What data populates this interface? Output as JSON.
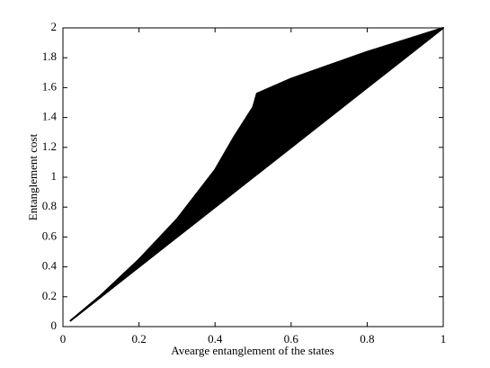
{
  "chart_data": {
    "type": "fill_between",
    "xlabel": "Avearge entanglement of the states",
    "ylabel": "Entanglement cost",
    "x": [
      0.02,
      0.1,
      0.2,
      0.3,
      0.4,
      0.45,
      0.5,
      0.51,
      0.6,
      0.7,
      0.8,
      0.9,
      1
    ],
    "y_lower": [
      0.04,
      0.2,
      0.4,
      0.6,
      0.8,
      0.9,
      1.0,
      1.02,
      1.2,
      1.4,
      1.6,
      1.8,
      2
    ],
    "y_upper": [
      0.04,
      0.21,
      0.45,
      0.72,
      1.05,
      1.27,
      1.47,
      1.56,
      1.66,
      1.75,
      1.84,
      1.92,
      2
    ],
    "color": "#000000",
    "xlim": [
      0,
      1
    ],
    "xticks": [
      0,
      0.2,
      0.4,
      0.6,
      0.8,
      1
    ],
    "ylim": [
      0,
      2
    ],
    "yticks": [
      0,
      0.2,
      0.4,
      0.6,
      0.8,
      1,
      1.2,
      1.4,
      1.6,
      1.8,
      2
    ],
    "grid": false
  }
}
